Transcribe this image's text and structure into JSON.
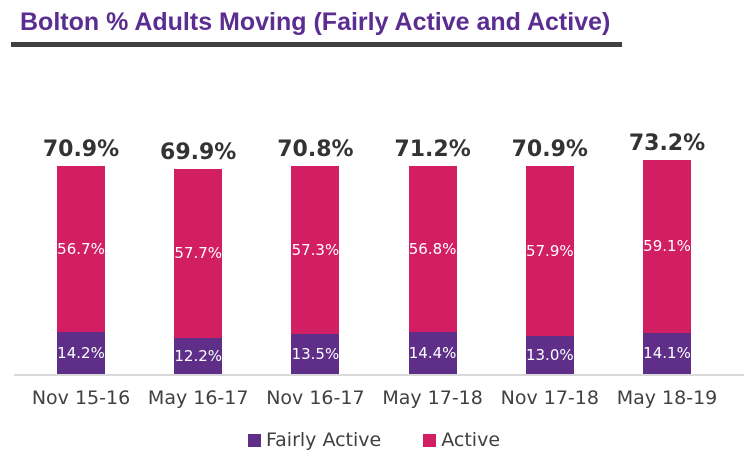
{
  "title": "Bolton % Adults Moving (Fairly Active and Active)",
  "colors": {
    "title": "#5B2D90",
    "title_rule": "#404040",
    "fairly_active": "#5E2E88",
    "active": "#D21F63",
    "total_label": "#333333",
    "axis_label": "#404040",
    "segment_label": "#FFFFFF",
    "baseline": "#D9D9D9",
    "background": "#FFFFFF"
  },
  "legend": [
    {
      "label": "Fairly Active",
      "color_key": "fairly_active"
    },
    {
      "label": "Active",
      "color_key": "active"
    }
  ],
  "chart_data": {
    "type": "bar",
    "stacked": true,
    "title": "Bolton % Adults Moving (Fairly Active and Active)",
    "categories": [
      "Nov 15-16",
      "May 16-17",
      "Nov 16-17",
      "May 17-18",
      "Nov 17-18",
      "May 18-19"
    ],
    "series": [
      {
        "name": "Fairly Active",
        "values": [
          14.2,
          12.2,
          13.5,
          14.4,
          13.0,
          14.1
        ]
      },
      {
        "name": "Active",
        "values": [
          56.7,
          57.7,
          57.3,
          56.8,
          57.9,
          59.1
        ]
      }
    ],
    "segment_labels": {
      "fairly_active": [
        "14.2%",
        "12.2%",
        "13.5%",
        "14.4%",
        "13.0%",
        "14.1%"
      ],
      "active": [
        "56.7%",
        "57.7%",
        "57.3%",
        "56.8%",
        "57.9%",
        "59.1%"
      ]
    },
    "totals": [
      "70.9%",
      "69.9%",
      "70.8%",
      "71.2%",
      "70.9%",
      "73.2%"
    ],
    "total_values": [
      70.9,
      69.9,
      70.8,
      71.2,
      70.9,
      73.2
    ],
    "xlabel": "",
    "ylabel": "",
    "ylim": [
      0,
      100
    ],
    "grid": false,
    "data_labels": true,
    "legend_position": "bottom"
  }
}
